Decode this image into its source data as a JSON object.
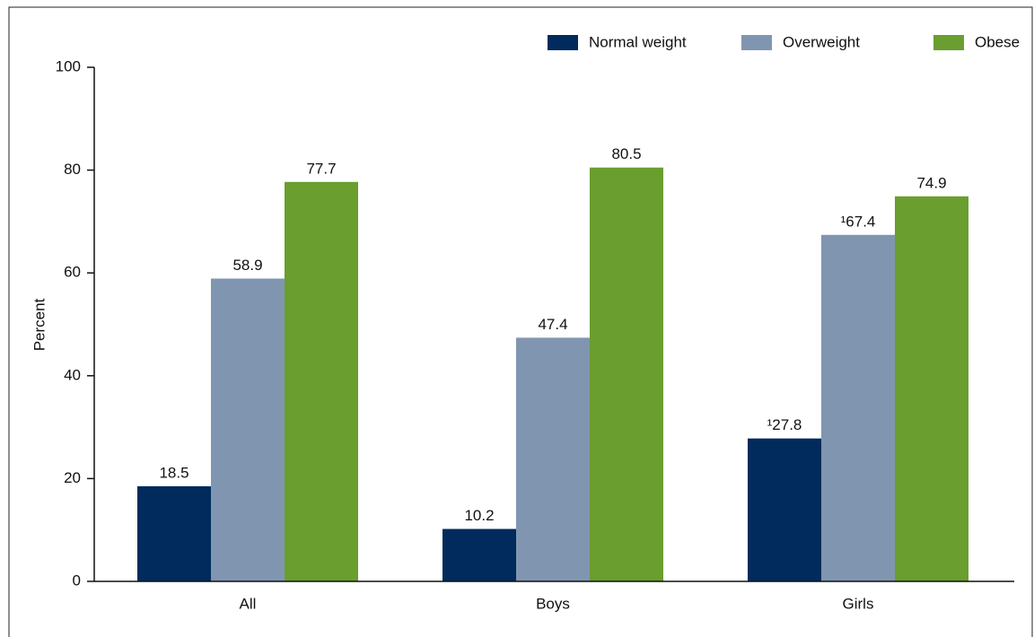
{
  "chart_data": {
    "type": "bar",
    "y_label": "Percent",
    "categories": [
      "All",
      "Boys",
      "Girls"
    ],
    "series": [
      {
        "name": "Normal weight",
        "color": "#002b5c",
        "values": [
          18.5,
          10.2,
          27.8
        ],
        "value_labels": [
          "18.5",
          "10.2",
          "¹27.8"
        ]
      },
      {
        "name": "Overweight",
        "color": "#8096b0",
        "values": [
          58.9,
          47.4,
          67.4
        ],
        "value_labels": [
          "58.9",
          "47.4",
          "¹67.4"
        ]
      },
      {
        "name": "Obese",
        "color": "#6a9e2f",
        "values": [
          77.7,
          80.5,
          74.9
        ],
        "value_labels": [
          "77.7",
          "80.5",
          "74.9"
        ]
      }
    ],
    "ylim": [
      0,
      100
    ],
    "yticks": [
      0,
      20,
      40,
      60,
      80,
      100
    ],
    "grid": false,
    "legend": "top-right"
  }
}
